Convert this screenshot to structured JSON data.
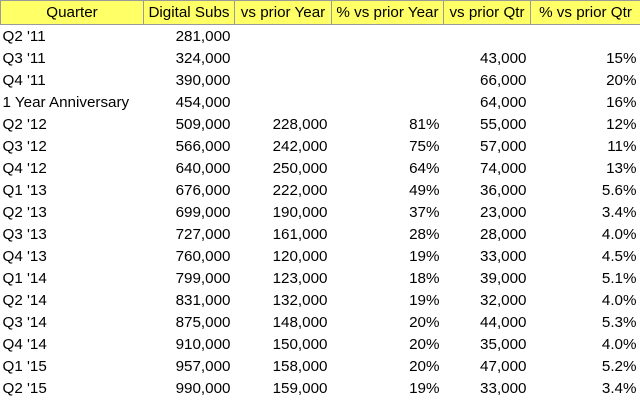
{
  "table": {
    "headers": [
      "Quarter",
      "Digital Subs",
      "vs prior Year",
      "% vs prior Year",
      "vs prior Qtr",
      "% vs prior Qtr"
    ],
    "rows": [
      [
        "Q2 '11",
        "281,000",
        "",
        "",
        "",
        ""
      ],
      [
        "Q3 '11",
        "324,000",
        "",
        "",
        "43,000",
        "15%"
      ],
      [
        "Q4 '11",
        "390,000",
        "",
        "",
        "66,000",
        "20%"
      ],
      [
        "1 Year Anniversary",
        "454,000",
        "",
        "",
        "64,000",
        "16%"
      ],
      [
        "Q2 '12",
        "509,000",
        "228,000",
        "81%",
        "55,000",
        "12%"
      ],
      [
        "Q3 '12",
        "566,000",
        "242,000",
        "75%",
        "57,000",
        "11%"
      ],
      [
        "Q4 '12",
        "640,000",
        "250,000",
        "64%",
        "74,000",
        "13%"
      ],
      [
        "Q1 '13",
        "676,000",
        "222,000",
        "49%",
        "36,000",
        "5.6%"
      ],
      [
        "Q2 '13",
        "699,000",
        "190,000",
        "37%",
        "23,000",
        "3.4%"
      ],
      [
        "Q3 '13",
        "727,000",
        "161,000",
        "28%",
        "28,000",
        "4.0%"
      ],
      [
        "Q4 '13",
        "760,000",
        "120,000",
        "19%",
        "33,000",
        "4.5%"
      ],
      [
        "Q1 '14",
        "799,000",
        "123,000",
        "18%",
        "39,000",
        "5.1%"
      ],
      [
        "Q2 '14",
        "831,000",
        "132,000",
        "19%",
        "32,000",
        "4.0%"
      ],
      [
        "Q3 '14",
        "875,000",
        "148,000",
        "20%",
        "44,000",
        "5.3%"
      ],
      [
        "Q4 '14",
        "910,000",
        "150,000",
        "20%",
        "35,000",
        "4.0%"
      ],
      [
        "Q1 '15",
        "957,000",
        "158,000",
        "20%",
        "47,000",
        "5.2%"
      ],
      [
        "Q2 '15",
        "990,000",
        "159,000",
        "19%",
        "33,000",
        "3.4%"
      ]
    ]
  },
  "colors": {
    "header_background": "#ffff66",
    "header_border": "#9a9a9a"
  }
}
